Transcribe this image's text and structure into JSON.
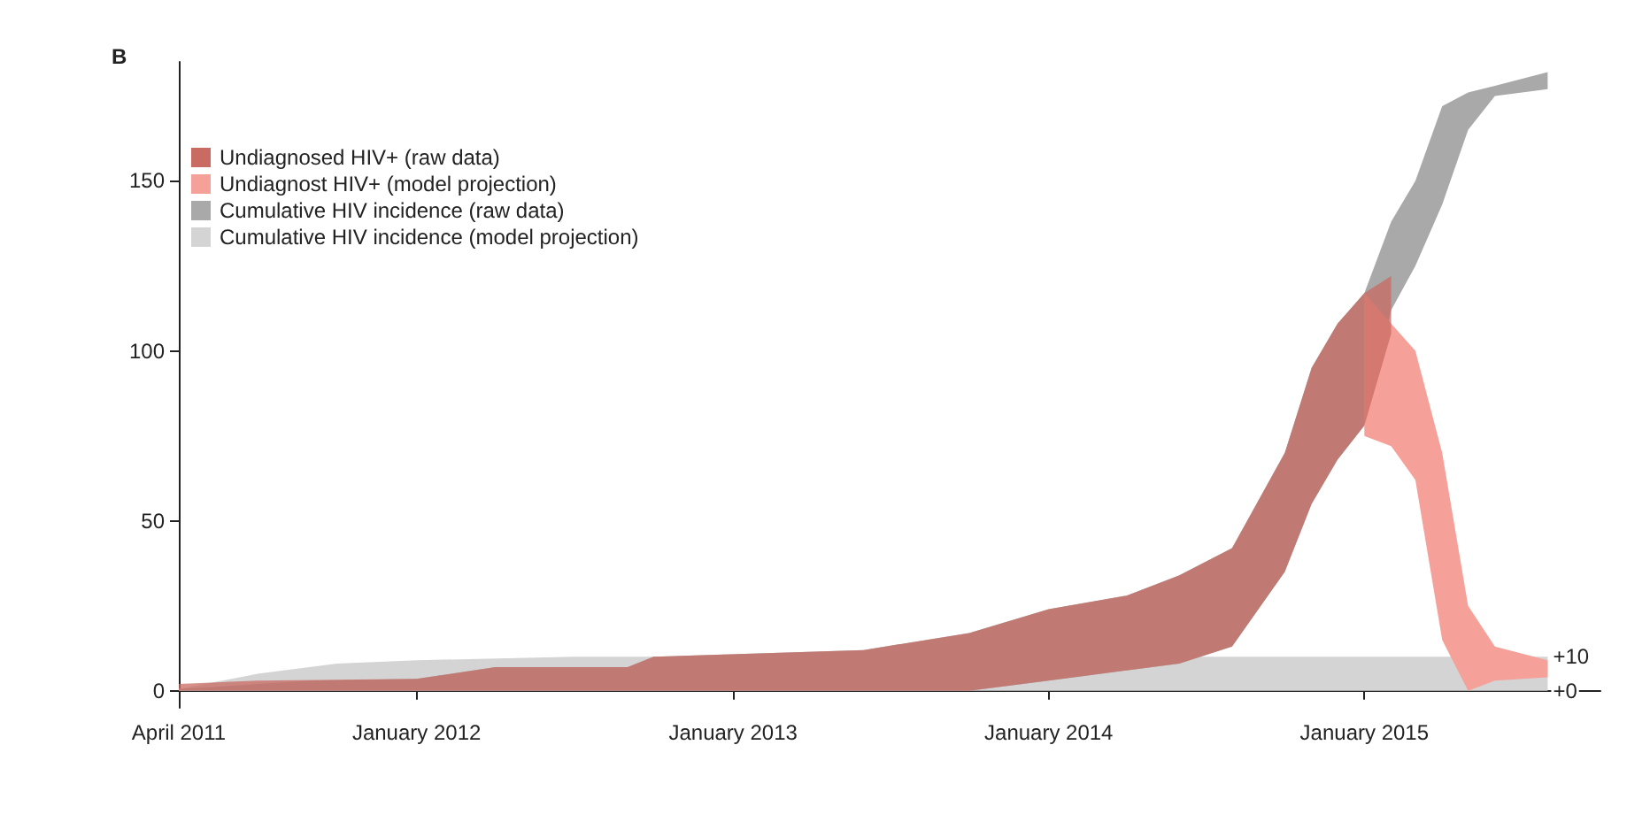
{
  "chart_data": {
    "type": "area",
    "annotations": [
      "B",
      {
        "text": "+10",
        "x": "2015-08",
        "y": 10
      },
      {
        "text": "+0",
        "x": "2015-08",
        "y": 0
      }
    ],
    "series": [
      {
        "name": "Cumulative HIV incidence (model projection)",
        "color": "#d4d4d4",
        "x": [
          "2011-04",
          "2011-07",
          "2011-10",
          "2012-01",
          "2012-07",
          "2015-08"
        ],
        "values": [
          null,
          null,
          null,
          null,
          null,
          null
        ],
        "lower": [
          0,
          0,
          0,
          0,
          0,
          0
        ],
        "upper": [
          0.5,
          5,
          8,
          9,
          10,
          10
        ]
      },
      {
        "name": "Cumulative HIV incidence (raw data)",
        "color": "#a9a9a9",
        "x": [
          "2011-04",
          "2011-09",
          "2012-01",
          "2012-04",
          "2012-09",
          "2012-10",
          "2013-06",
          "2013-10",
          "2014-01",
          "2014-04",
          "2014-06",
          "2014-08",
          "2014-10",
          "2014-11",
          "2014-12",
          "2015-01",
          "2015-02",
          "2015-03",
          "2015-04",
          "2015-05",
          "2015-06",
          "2015-08"
        ],
        "values": [
          null,
          null,
          null,
          null,
          null,
          null,
          null,
          null,
          null,
          null,
          null,
          null,
          null,
          null,
          null,
          null,
          null,
          null,
          null,
          null,
          null,
          null
        ],
        "lower": [
          0,
          0,
          0,
          0,
          0,
          0,
          0,
          0,
          3,
          6,
          8,
          13,
          35,
          55,
          68,
          78,
          112,
          125,
          143,
          165,
          175,
          177
        ],
        "upper": [
          0.5,
          3,
          3.5,
          7,
          7,
          10,
          12,
          17,
          24,
          28,
          34,
          42,
          70,
          95,
          108,
          117,
          138,
          150,
          172,
          176,
          178,
          182
        ]
      },
      {
        "name": "Undiagnost HIV+ (model projection)",
        "color": "#f5a199",
        "x": [
          "2015-01",
          "2015-02",
          "2015-03",
          "2015-04",
          "2015-05",
          "2015-06",
          "2015-08"
        ],
        "values": [
          null,
          null,
          null,
          null,
          null,
          null,
          null
        ],
        "lower": [
          75,
          72,
          62,
          15,
          0,
          3,
          4
        ],
        "upper": [
          117,
          108,
          100,
          70,
          25,
          13,
          9
        ]
      },
      {
        "name": "Undiagnosed HIV+ (raw data)",
        "color": "#c96b62",
        "x": [
          "2011-04",
          "2011-07",
          "2012-01",
          "2012-04",
          "2012-09",
          "2012-10",
          "2013-06",
          "2013-10",
          "2014-01",
          "2014-04",
          "2014-06",
          "2014-08",
          "2014-10",
          "2014-11",
          "2014-12",
          "2015-01",
          "2015-02"
        ],
        "values": [
          null,
          null,
          null,
          null,
          null,
          null,
          null,
          null,
          null,
          null,
          null,
          null,
          null,
          null,
          null,
          null,
          null
        ],
        "lower": [
          0,
          0,
          0,
          0,
          0,
          0,
          0,
          0,
          3,
          6,
          8,
          13,
          35,
          55,
          68,
          78,
          105
        ],
        "upper": [
          2,
          3,
          3.5,
          7,
          7,
          10,
          12,
          17,
          24,
          28,
          34,
          42,
          70,
          95,
          108,
          117,
          122
        ]
      }
    ],
    "xlim": [
      "2011-04",
      "2015-10"
    ],
    "xticks": [
      {
        "value": "2011-04",
        "label": "April 2011"
      },
      {
        "value": "2012-01",
        "label": "January 2012"
      },
      {
        "value": "2013-01",
        "label": "January 2013"
      },
      {
        "value": "2014-01",
        "label": "January 2014"
      },
      {
        "value": "2015-01",
        "label": "January 2015"
      }
    ],
    "ylim": [
      -5,
      185
    ],
    "yticks": [
      0,
      50,
      100,
      150
    ],
    "legend": "top left",
    "grid": false
  }
}
